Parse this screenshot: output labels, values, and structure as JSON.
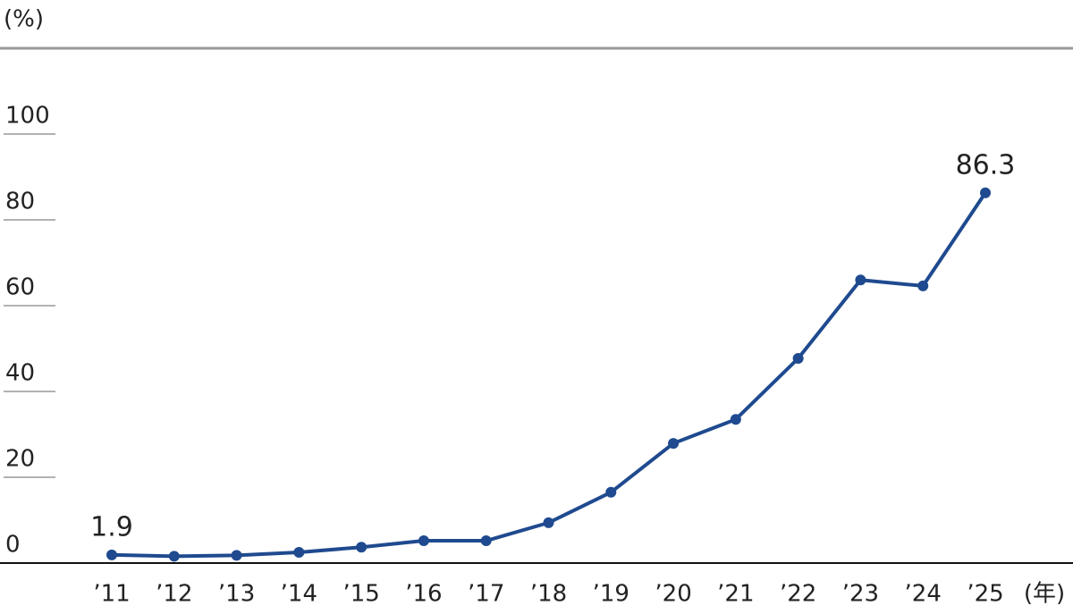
{
  "chart_data": {
    "type": "line",
    "y_unit": "(%)",
    "x_unit": "(年)",
    "categories": [
      "’11",
      "’12",
      "’13",
      "’14",
      "’15",
      "’16",
      "’17",
      "’18",
      "’19",
      "’20",
      "’21",
      "’22",
      "’23",
      "’24",
      "’25"
    ],
    "series": [
      {
        "color": "#1f4a8f",
        "values": [
          1.9,
          1.6,
          1.8,
          2.5,
          3.7,
          5.2,
          5.2,
          9.4,
          16.5,
          27.9,
          33.5,
          47.7,
          66.0,
          64.6,
          86.3
        ],
        "value_labels": [
          "1.9",
          null,
          null,
          null,
          null,
          null,
          null,
          null,
          null,
          null,
          null,
          null,
          null,
          null,
          "86.3"
        ]
      }
    ],
    "ylim": [
      0,
      120
    ],
    "yticks": [
      0,
      20,
      40,
      60,
      80,
      100
    ]
  }
}
